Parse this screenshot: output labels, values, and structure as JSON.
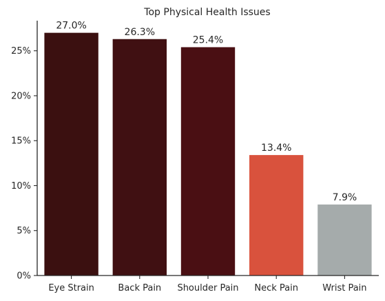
{
  "chart_data": {
    "type": "bar",
    "title": "Top Physical Health Issues",
    "xlabel": "",
    "ylabel": "",
    "categories": [
      "Eye Strain",
      "Back Pain",
      "Shoulder Pain",
      "Neck Pain",
      "Wrist Pain"
    ],
    "values": [
      27.0,
      26.3,
      25.4,
      13.4,
      7.9
    ],
    "data_labels": [
      "27.0%",
      "26.3%",
      "25.4%",
      "13.4%",
      "7.9%"
    ],
    "colors": [
      "#3b1010",
      "#401012",
      "#4a0f13",
      "#d9523d",
      "#a5abab"
    ],
    "ylim": [
      0,
      28.35
    ],
    "yticks": [
      0,
      5,
      10,
      15,
      20,
      25
    ],
    "ytick_labels": [
      "0%",
      "5%",
      "10%",
      "15%",
      "20%",
      "25%"
    ],
    "grid": false,
    "legend": "none"
  }
}
